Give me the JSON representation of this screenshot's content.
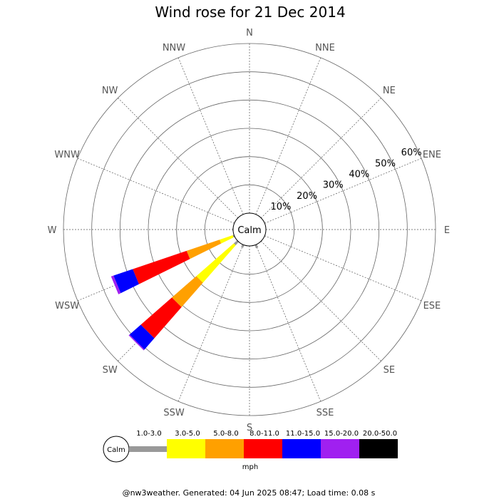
{
  "chart_data": {
    "type": "wind_rose",
    "title": "Wind rose for 21 Dec 2014",
    "directions": [
      "N",
      "NNE",
      "NE",
      "ENE",
      "E",
      "ESE",
      "SE",
      "SSE",
      "S",
      "SSW",
      "SW",
      "WSW",
      "W",
      "WNW",
      "NW",
      "NNW"
    ],
    "ring_labels": [
      "10%",
      "20%",
      "30%",
      "40%",
      "50%",
      "60%"
    ],
    "ring_max_percent": 60,
    "calm_label": "Calm",
    "unit": "mph",
    "speed_bins": [
      {
        "label": "",
        "color": "#999999"
      },
      {
        "label": "1.0-3.0",
        "color": "#ffff00"
      },
      {
        "label": "3.0-5.0",
        "color": "#ffa000"
      },
      {
        "label": "5.0-8.0",
        "color": "#ff0000"
      },
      {
        "label": "8.0-11.0",
        "color": "#0000ff"
      },
      {
        "label": "11.0-15.0",
        "color": "#a020f0"
      },
      {
        "label": "15.0-20.0",
        "color": "#000000"
      },
      {
        "label": "20.0-50.0",
        "color": "#000000"
      }
    ],
    "series": [
      {
        "direction": "WSW",
        "cumulative_percent": [
          0.5,
          5.4,
          17.7,
          37.8,
          45.0,
          45.9
        ]
      },
      {
        "direction": "SW",
        "cumulative_percent": [
          1.6,
          19.2,
          30.7,
          45.3,
          50.6,
          51.0
        ]
      },
      {
        "direction": "SSW",
        "cumulative_percent": [
          1.0
        ]
      },
      {
        "direction": "SSE",
        "cumulative_percent": [
          1.2
        ]
      },
      {
        "direction": "W",
        "cumulative_percent": [
          0.3
        ]
      }
    ]
  },
  "footer": "@nw3weather. Generated: 04 Jun 2025 08:47; Load time: 0.08 s"
}
